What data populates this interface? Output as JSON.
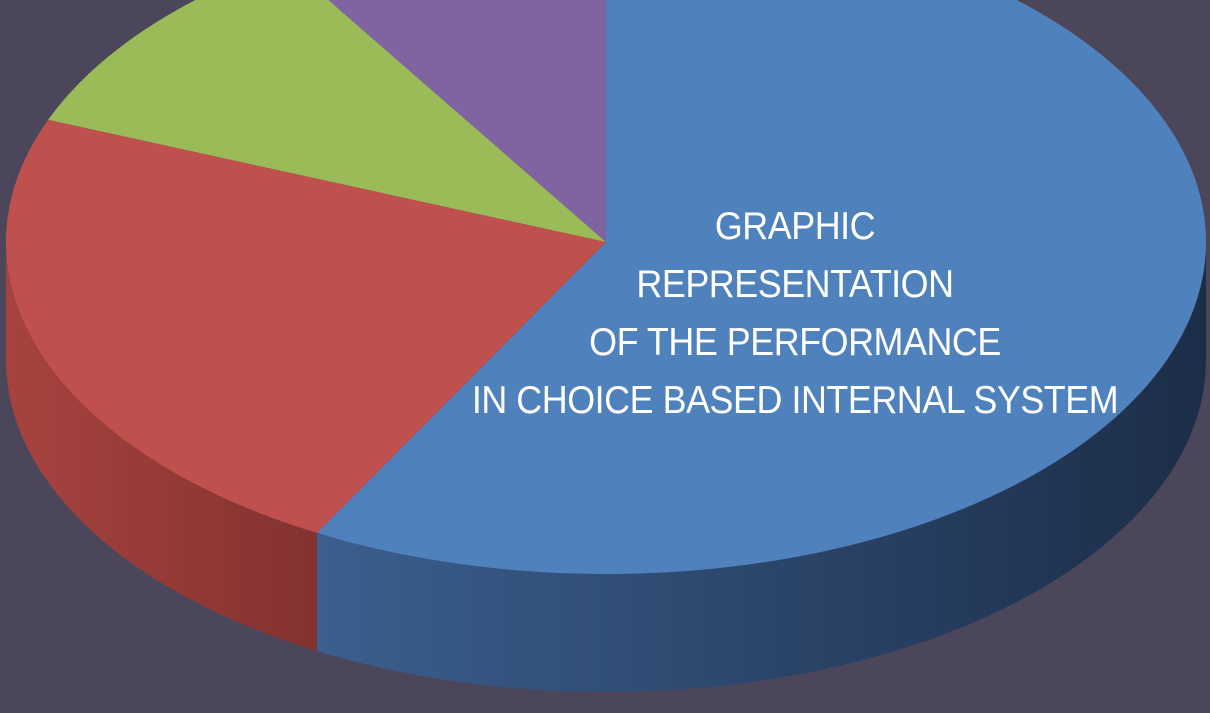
{
  "background_color": "#4b4659",
  "chart_data": {
    "type": "pie",
    "style": "3d",
    "title_lines": [
      "GRAPHIC",
      "REPRESENTATION",
      "OF THE PERFORMANCE",
      "IN CHOICE BASED INTERNAL SYSTEM"
    ],
    "slices": [
      {
        "value": 58,
        "color": "#4f81bd",
        "side_color": "#2a4a6e"
      },
      {
        "value": 23,
        "color": "#c0504d",
        "side_color": "#8a3533"
      },
      {
        "value": 10,
        "color": "#9bbb59",
        "side_color": "#6b8a3a"
      },
      {
        "value": 9,
        "color": "#8064a2",
        "side_color": "#594673"
      }
    ]
  }
}
